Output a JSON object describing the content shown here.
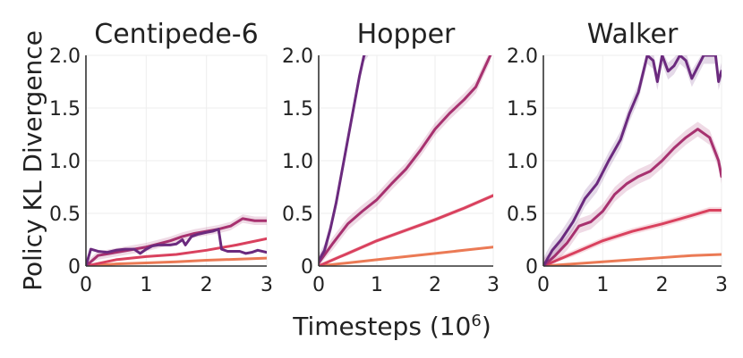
{
  "chart_data": [
    {
      "type": "line",
      "title": "Centipede-6",
      "xlabel": "Timesteps (10^6)",
      "ylabel": "Policy KL Divergence",
      "xlim": [
        0,
        3
      ],
      "ylim": [
        0,
        2
      ],
      "xticks": [
        "0",
        "1",
        "2",
        "3"
      ],
      "yticks": [
        "0",
        "0.5",
        "1.0",
        "1.5",
        "2.0"
      ],
      "grid": true,
      "series": [
        {
          "color": "#6b2a7e",
          "x": [
            0,
            0.08,
            0.2,
            0.35,
            0.5,
            0.65,
            0.8,
            0.9,
            1.0,
            1.1,
            1.2,
            1.3,
            1.4,
            1.5,
            1.6,
            1.65,
            1.75,
            1.85,
            2.0,
            2.1,
            2.2,
            2.25,
            2.35,
            2.45,
            2.55,
            2.65,
            2.75,
            2.85,
            3.0
          ],
          "y": [
            0.0,
            0.16,
            0.14,
            0.13,
            0.15,
            0.16,
            0.16,
            0.12,
            0.16,
            0.19,
            0.2,
            0.2,
            0.2,
            0.21,
            0.25,
            0.2,
            0.28,
            0.3,
            0.32,
            0.33,
            0.35,
            0.16,
            0.14,
            0.14,
            0.14,
            0.12,
            0.13,
            0.15,
            0.13
          ]
        },
        {
          "color": "#a7316f",
          "x": [
            0,
            0.2,
            0.4,
            0.6,
            0.8,
            1.0,
            1.2,
            1.4,
            1.6,
            1.8,
            2.0,
            2.2,
            2.4,
            2.6,
            2.8,
            3.0
          ],
          "y": [
            0.0,
            0.1,
            0.12,
            0.14,
            0.16,
            0.18,
            0.21,
            0.24,
            0.28,
            0.31,
            0.33,
            0.35,
            0.38,
            0.45,
            0.43,
            0.43
          ],
          "band": 0.04
        },
        {
          "color": "#d9415e",
          "x": [
            0,
            0.5,
            1.0,
            1.5,
            2.0,
            2.5,
            3.0
          ],
          "y": [
            0.0,
            0.06,
            0.09,
            0.11,
            0.15,
            0.2,
            0.26
          ]
        },
        {
          "color": "#eb7a55",
          "x": [
            0,
            0.5,
            1.0,
            1.5,
            2.0,
            2.5,
            3.0
          ],
          "y": [
            0.0,
            0.02,
            0.03,
            0.04,
            0.055,
            0.065,
            0.075
          ]
        }
      ]
    },
    {
      "type": "line",
      "title": "Hopper",
      "xlim": [
        0,
        3
      ],
      "ylim": [
        0,
        2
      ],
      "xticks": [
        "0",
        "1",
        "2",
        "3"
      ],
      "yticks": [
        "0",
        "0.5",
        "1.0",
        "1.5",
        "2.0"
      ],
      "grid": true,
      "series": [
        {
          "color": "#6b2a7e",
          "x": [
            0,
            0.1,
            0.2,
            0.3,
            0.4,
            0.5,
            0.6,
            0.7,
            0.78,
            0.85
          ],
          "y": [
            0.05,
            0.15,
            0.35,
            0.6,
            0.9,
            1.2,
            1.5,
            1.8,
            2.0,
            2.05
          ],
          "band": 0.06
        },
        {
          "color": "#a7316f",
          "x": [
            0,
            0.25,
            0.5,
            0.75,
            1.0,
            1.25,
            1.5,
            1.75,
            2.0,
            2.25,
            2.5,
            2.7,
            2.85,
            2.95
          ],
          "y": [
            0.03,
            0.22,
            0.4,
            0.52,
            0.63,
            0.78,
            0.92,
            1.1,
            1.3,
            1.45,
            1.58,
            1.7,
            1.88,
            2.0
          ],
          "band": 0.06
        },
        {
          "color": "#d9415e",
          "x": [
            0,
            0.5,
            1.0,
            1.5,
            2.0,
            2.5,
            3.0
          ],
          "y": [
            0.0,
            0.12,
            0.24,
            0.34,
            0.44,
            0.55,
            0.67
          ],
          "band": 0.02
        },
        {
          "color": "#eb7a55",
          "x": [
            0,
            0.5,
            1.0,
            1.5,
            2.0,
            2.5,
            3.0
          ],
          "y": [
            0.0,
            0.03,
            0.06,
            0.09,
            0.12,
            0.15,
            0.18
          ]
        }
      ]
    },
    {
      "type": "line",
      "title": "Walker",
      "xlim": [
        0,
        3
      ],
      "ylim": [
        0,
        2
      ],
      "xticks": [
        "0",
        "1",
        "2",
        "3"
      ],
      "yticks": [
        "0",
        "0.5",
        "1.0",
        "1.5",
        "2.0"
      ],
      "grid": true,
      "series": [
        {
          "color": "#6b2a7e",
          "x": [
            0,
            0.15,
            0.3,
            0.5,
            0.7,
            0.9,
            1.1,
            1.3,
            1.45,
            1.6,
            1.75,
            1.85,
            1.92,
            2.0,
            2.1,
            2.2,
            2.3,
            2.4,
            2.5,
            2.7,
            2.8,
            2.9,
            2.95,
            3.0
          ],
          "y": [
            0.0,
            0.15,
            0.25,
            0.42,
            0.64,
            0.78,
            1.0,
            1.2,
            1.45,
            1.65,
            2.0,
            1.95,
            1.75,
            2.0,
            1.85,
            1.9,
            2.0,
            1.95,
            1.78,
            2.0,
            2.0,
            2.0,
            1.75,
            1.85
          ],
          "band": 0.08
        },
        {
          "color": "#a7316f",
          "x": [
            0,
            0.2,
            0.4,
            0.6,
            0.8,
            1.0,
            1.2,
            1.4,
            1.6,
            1.8,
            2.0,
            2.2,
            2.4,
            2.6,
            2.8,
            2.95,
            3.0
          ],
          "y": [
            0.0,
            0.1,
            0.22,
            0.38,
            0.42,
            0.52,
            0.68,
            0.78,
            0.85,
            0.9,
            1.0,
            1.12,
            1.22,
            1.3,
            1.22,
            1.0,
            0.85
          ],
          "band": 0.07
        },
        {
          "color": "#d9415e",
          "x": [
            0,
            0.5,
            1.0,
            1.5,
            2.0,
            2.5,
            2.8,
            3.0
          ],
          "y": [
            0.0,
            0.12,
            0.24,
            0.33,
            0.4,
            0.48,
            0.53,
            0.53
          ],
          "band": 0.03
        },
        {
          "color": "#eb7a55",
          "x": [
            0,
            0.5,
            1.0,
            1.5,
            2.0,
            2.5,
            3.0
          ],
          "y": [
            0.0,
            0.02,
            0.04,
            0.06,
            0.08,
            0.1,
            0.11
          ]
        }
      ]
    }
  ],
  "labels": {
    "ylabel": "Policy KL Divergence",
    "xlabel_main": "Timesteps (10",
    "xlabel_exp": "6",
    "xlabel_close": ")"
  }
}
